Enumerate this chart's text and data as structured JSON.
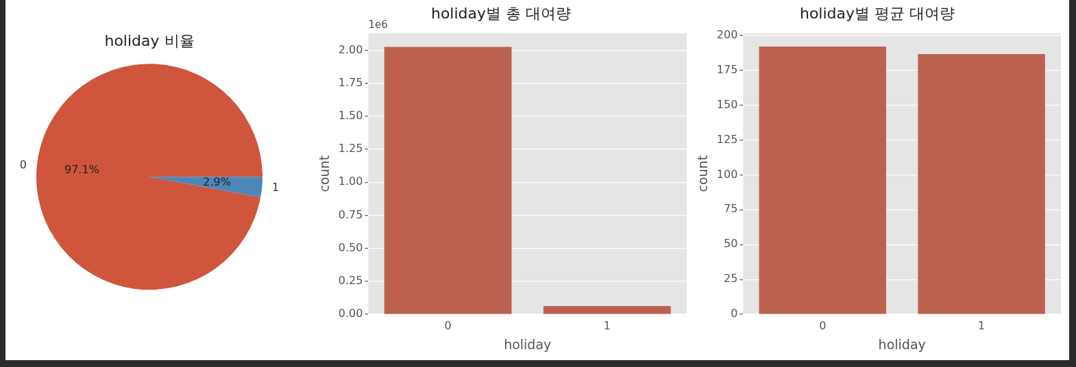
{
  "chart_data": [
    {
      "type": "pie",
      "title": "holiday 비율",
      "categories": [
        "0",
        "1"
      ],
      "values": [
        97.1,
        2.9
      ],
      "colors": [
        "#d0553d",
        "#4b87b9"
      ],
      "value_labels": [
        "97.1%",
        "2.9%"
      ]
    },
    {
      "type": "bar",
      "title": "holiday별 총 대여량",
      "categories": [
        "0",
        "1"
      ],
      "values": [
        2.026,
        0.062
      ],
      "color": "#bc6150",
      "xlabel": "holiday",
      "ylabel": "count",
      "ylim": [
        0,
        2.13
      ],
      "yticks": [
        {
          "value": 0,
          "label": "0.00"
        },
        {
          "value": 0.25,
          "label": "0.25"
        },
        {
          "value": 0.5,
          "label": "0.50"
        },
        {
          "value": 0.75,
          "label": "0.75"
        },
        {
          "value": 1,
          "label": "1.00"
        },
        {
          "value": 1.25,
          "label": "1.25"
        },
        {
          "value": 1.5,
          "label": "1.50"
        },
        {
          "value": 1.75,
          "label": "1.75"
        },
        {
          "value": 2,
          "label": "2.00"
        }
      ],
      "grid": "y",
      "annotations": [
        "1e6"
      ]
    },
    {
      "type": "bar",
      "title": "holiday별 평균 대여량",
      "categories": [
        "0",
        "1"
      ],
      "values": [
        192.1,
        186.7
      ],
      "color": "#bc6150",
      "xlabel": "holiday",
      "ylabel": "count",
      "ylim": [
        0,
        201.7
      ],
      "yticks": [
        0,
        25,
        50,
        75,
        100,
        125,
        150,
        175,
        200
      ],
      "grid": "y"
    }
  ]
}
